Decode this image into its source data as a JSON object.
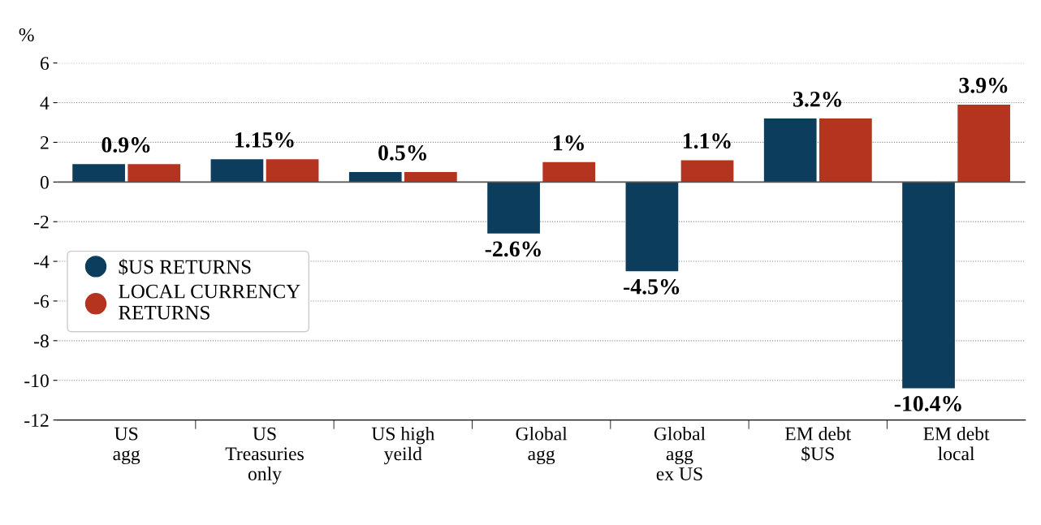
{
  "chart_data": {
    "type": "bar",
    "ylabel": "%",
    "categories": [
      "US\nagg",
      "US\nTreasuries\nonly",
      "US high\nyeild",
      "Global\nagg",
      "Global\nagg\nex US",
      "EM debt\n$US",
      "EM debt\nlocal"
    ],
    "series": [
      {
        "name": "$US RETURNS",
        "color": "#0d3d5c",
        "values": [
          0.9,
          1.15,
          0.5,
          -2.6,
          -4.5,
          3.2,
          -10.4
        ],
        "value_labels": [
          "0.9%",
          "1.15%",
          "0.5%",
          "-2.6%",
          "-4.5%",
          "3.2%",
          "-10.4%"
        ]
      },
      {
        "name": "LOCAL CURRENCY\nRETURNS",
        "color": "#b5341f",
        "values": [
          0.9,
          1.15,
          0.5,
          1,
          1.1,
          3.2,
          3.9
        ],
        "value_labels": [
          null,
          null,
          null,
          "1%",
          "1.1%",
          null,
          "3.9%"
        ]
      }
    ],
    "ylim": [
      -12,
      6
    ],
    "yticks": [
      -12,
      -10,
      -8,
      -6,
      -4,
      -2,
      0,
      2,
      4,
      6
    ],
    "grid": "y",
    "legend": "center left",
    "ref_lines": [
      {
        "axis": "y",
        "value": 0,
        "color": "#555555"
      }
    ]
  }
}
